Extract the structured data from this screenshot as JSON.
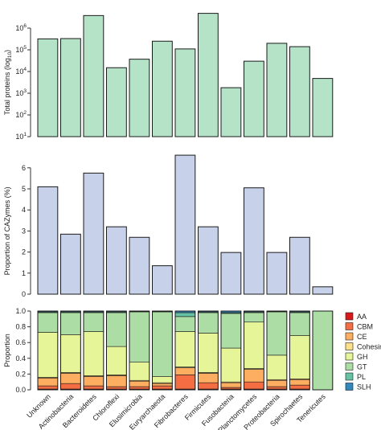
{
  "categories": [
    "Unknown",
    "Actinobacteria",
    "Bacteroidetes",
    "Chloroflexi",
    "Elusimicrobia",
    "Euryarchaeota",
    "Fibrobacteres",
    "Firmicutes",
    "Fusobacteria",
    "Planctomycetes",
    "Proteobacteria",
    "Spirochaetes",
    "Tenericutes"
  ],
  "colors": {
    "top_fill": "#b5e3c8",
    "mid_fill": "#c7d2ea",
    "stroke": "#1a1a1a",
    "AA": "#d7191c",
    "CBM": "#f46d43",
    "CE": "#fdae61",
    "Cohesin": "#fee08b",
    "GH": "#e6f598",
    "GT": "#abdda4",
    "PL": "#66c2a5",
    "SLH": "#3288bd"
  },
  "chart_data": [
    {
      "type": "bar",
      "ylabel": "Total proteins (log10)",
      "ylabel_main": "Total proteins (log",
      "ylabel_sub": "10",
      "ylabel_close": ")",
      "yscale": "log",
      "ylim": [
        10,
        10000000
      ],
      "yticks": [
        {
          "value": 10,
          "base": "10",
          "exp": "1"
        },
        {
          "value": 100,
          "base": "10",
          "exp": "2"
        },
        {
          "value": 1000,
          "base": "10",
          "exp": "3"
        },
        {
          "value": 10000,
          "base": "10",
          "exp": "4"
        },
        {
          "value": 100000,
          "base": "10",
          "exp": "5"
        },
        {
          "value": 1000000,
          "base": "10",
          "exp": "6"
        }
      ],
      "values": [
        320000,
        330000,
        3800000,
        15000,
        37000,
        250000,
        110000,
        4800000,
        1800,
        30000,
        200000,
        140000,
        4800
      ]
    },
    {
      "type": "bar",
      "ylabel": "Proportion of CAZymes (%)",
      "ylim": [
        0,
        6.7
      ],
      "yticks": [
        0,
        1,
        2,
        3,
        4,
        5,
        6
      ],
      "values": [
        5.1,
        2.85,
        5.75,
        3.2,
        2.7,
        1.35,
        6.6,
        3.2,
        1.98,
        5.05,
        1.98,
        2.7,
        0.35
      ]
    },
    {
      "type": "stacked_bar",
      "ylabel": "Proportion",
      "ylim": [
        0,
        1
      ],
      "yticks": [
        0,
        0.2,
        0.4,
        0.6,
        0.8,
        1.0
      ],
      "ytick_labels": [
        "0.0",
        "0.2",
        "0.4",
        "0.6",
        "0.8",
        "1.0"
      ],
      "series": [
        {
          "name": "AA",
          "values": [
            0.01,
            0.01,
            0.01,
            0.01,
            0.01,
            0.01,
            0.01,
            0.01,
            0.01,
            0.01,
            0.01,
            0.01,
            0.0
          ]
        },
        {
          "name": "CBM",
          "values": [
            0.04,
            0.07,
            0.04,
            0.03,
            0.03,
            0.04,
            0.18,
            0.08,
            0.02,
            0.09,
            0.03,
            0.05,
            0.0
          ]
        },
        {
          "name": "CE",
          "values": [
            0.1,
            0.13,
            0.12,
            0.14,
            0.07,
            0.03,
            0.09,
            0.12,
            0.06,
            0.16,
            0.08,
            0.07,
            0.0
          ]
        },
        {
          "name": "Cohesin",
          "values": [
            0.01,
            0.01,
            0.01,
            0.01,
            0.01,
            0.01,
            0.01,
            0.01,
            0.01,
            0.01,
            0.01,
            0.01,
            0.0
          ]
        },
        {
          "name": "GH",
          "values": [
            0.57,
            0.48,
            0.56,
            0.36,
            0.23,
            0.08,
            0.45,
            0.5,
            0.43,
            0.59,
            0.31,
            0.55,
            0.0
          ]
        },
        {
          "name": "GT",
          "values": [
            0.25,
            0.28,
            0.24,
            0.43,
            0.64,
            0.82,
            0.19,
            0.26,
            0.44,
            0.12,
            0.55,
            0.29,
            1.0
          ]
        },
        {
          "name": "PL",
          "values": [
            0.01,
            0.01,
            0.01,
            0.01,
            0.005,
            0.005,
            0.05,
            0.01,
            0.01,
            0.01,
            0.005,
            0.01,
            0.0
          ]
        },
        {
          "name": "SLH",
          "values": [
            0.01,
            0.01,
            0.01,
            0.01,
            0.005,
            0.005,
            0.02,
            0.01,
            0.02,
            0.01,
            0.005,
            0.01,
            0.0
          ]
        }
      ],
      "legend_position": "right"
    }
  ]
}
